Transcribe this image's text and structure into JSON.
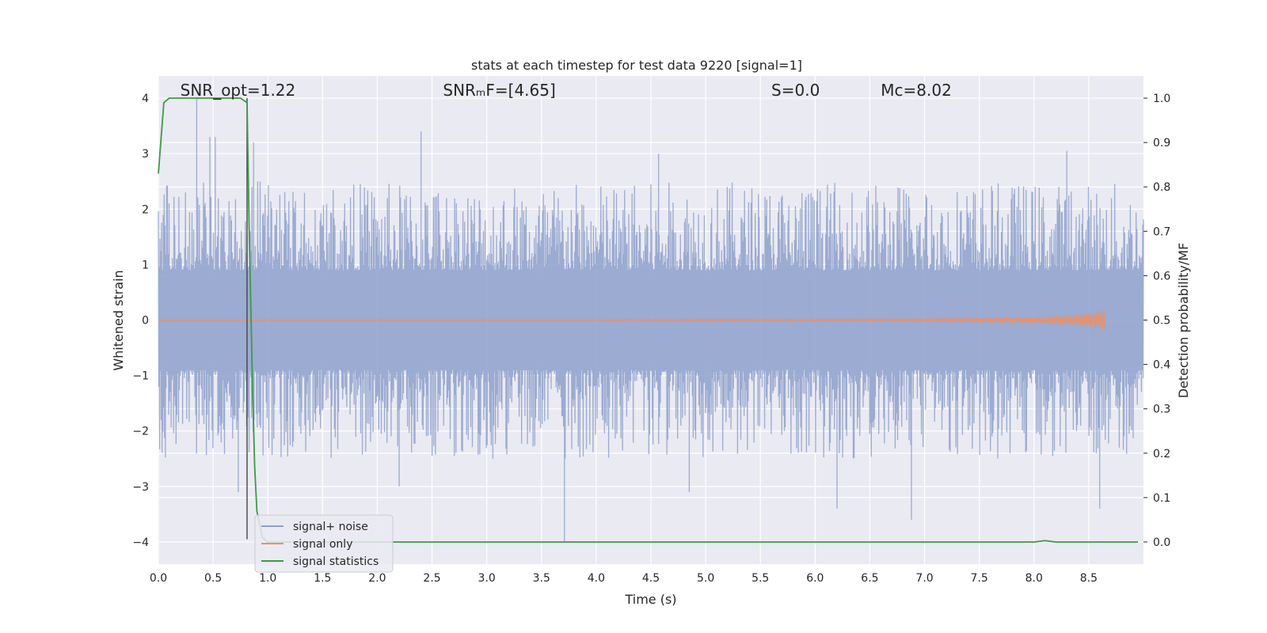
{
  "chart_data": {
    "type": "line",
    "title": "stats at each timestep for test data 9220 [signal=1]",
    "xlabel": "Time (s)",
    "ylabel_left": "Whitened strain",
    "ylabel_right": "Detection probability/MF",
    "xlim": [
      0.0,
      9.0
    ],
    "ylim_left": [
      -4.4,
      4.4
    ],
    "ylim_right": [
      -0.05,
      1.05
    ],
    "x_ticks": [
      0.0,
      0.5,
      1.0,
      1.5,
      2.0,
      2.5,
      3.0,
      3.5,
      4.0,
      4.5,
      5.0,
      5.5,
      6.0,
      6.5,
      7.0,
      7.5,
      8.0,
      8.5
    ],
    "x_tick_labels": [
      "0.0",
      "0.5",
      "1.0",
      "1.5",
      "2.0",
      "2.5",
      "3.0",
      "3.5",
      "4.0",
      "4.5",
      "5.0",
      "5.5",
      "6.0",
      "6.5",
      "7.0",
      "7.5",
      "8.0",
      "8.5"
    ],
    "y_left_ticks": [
      -4,
      -3,
      -2,
      -1,
      0,
      1,
      2,
      3,
      4
    ],
    "y_left_tick_labels": [
      "−4",
      "−3",
      "−2",
      "−1",
      "0",
      "1",
      "2",
      "3",
      "4"
    ],
    "y_right_ticks": [
      0.0,
      0.1,
      0.2,
      0.3,
      0.4,
      0.5,
      0.6,
      0.7,
      0.8,
      0.9,
      1.0
    ],
    "y_right_tick_labels": [
      "0.0",
      "0.1",
      "0.2",
      "0.3",
      "0.4",
      "0.5",
      "0.6",
      "0.7",
      "0.8",
      "0.9",
      "1.0"
    ],
    "grid": true,
    "legend_position": "lower-left",
    "annotations": [
      {
        "text": "SNR_opt=1.22",
        "x": 0.2,
        "y_left": 4.1
      },
      {
        "text": "SNRₘF=[4.65]",
        "x": 2.6,
        "y_left": 4.1
      },
      {
        "text": "S=0.0",
        "x": 5.6,
        "y_left": 4.1
      },
      {
        "text": "Mᴄ=8.02",
        "x": 6.6,
        "y_left": 4.1
      }
    ],
    "vertical_marker_x": 0.81,
    "series": [
      {
        "name": "signal+ noise",
        "color": "#8da0cb",
        "axis": "left",
        "envelope_note": "dense noise, approx amplitude",
        "x_range": [
          0.0,
          9.0
        ],
        "spikes": [
          {
            "x": 0.35,
            "y": 4.0
          },
          {
            "x": 0.47,
            "y": 3.3
          },
          {
            "x": 0.52,
            "y": 3.3
          },
          {
            "x": 0.87,
            "y": 3.2
          },
          {
            "x": 2.4,
            "y": 3.4
          },
          {
            "x": 4.57,
            "y": 3.0
          },
          {
            "x": 8.3,
            "y": 3.05
          },
          {
            "x": 3.71,
            "y": -4.0
          },
          {
            "x": 6.2,
            "y": -3.4
          },
          {
            "x": 6.88,
            "y": -3.6
          },
          {
            "x": 8.6,
            "y": -3.4
          },
          {
            "x": 4.85,
            "y": -3.1
          },
          {
            "x": 0.73,
            "y": -3.1
          },
          {
            "x": 2.2,
            "y": -3.0
          }
        ]
      },
      {
        "name": "signal only",
        "color": "#e5926f",
        "axis": "left",
        "x": [
          0.0,
          1.0,
          2.0,
          3.0,
          4.0,
          5.0,
          6.0,
          7.0,
          7.5,
          8.0,
          8.3,
          8.5,
          8.65
        ],
        "amplitude": [
          0.0,
          0.0,
          0.0,
          0.0,
          0.0,
          0.01,
          0.01,
          0.02,
          0.03,
          0.05,
          0.08,
          0.12,
          0.18
        ]
      },
      {
        "name": "signal statistics",
        "color": "#3c9a45",
        "axis": "right",
        "x": [
          0.0,
          0.05,
          0.1,
          0.2,
          0.4,
          0.6,
          0.75,
          0.81,
          0.83,
          0.86,
          0.88,
          0.9,
          0.95,
          1.0,
          2.0,
          4.0,
          6.0,
          7.9,
          8.0,
          8.1,
          8.2,
          8.4,
          8.6,
          8.95
        ],
        "values": [
          0.83,
          0.99,
          1.0,
          1.0,
          1.0,
          1.0,
          1.0,
          0.99,
          0.7,
          0.35,
          0.17,
          0.07,
          0.01,
          0.0,
          0.0,
          0.0,
          0.0,
          0.0,
          0.0,
          0.003,
          0.0,
          0.0,
          0.0,
          0.0
        ]
      }
    ],
    "legend": [
      {
        "label": "signal+ noise",
        "color": "#8da0cb"
      },
      {
        "label": "signal only",
        "color": "#e5926f"
      },
      {
        "label": "signal statistics",
        "color": "#3c9a45"
      }
    ]
  }
}
